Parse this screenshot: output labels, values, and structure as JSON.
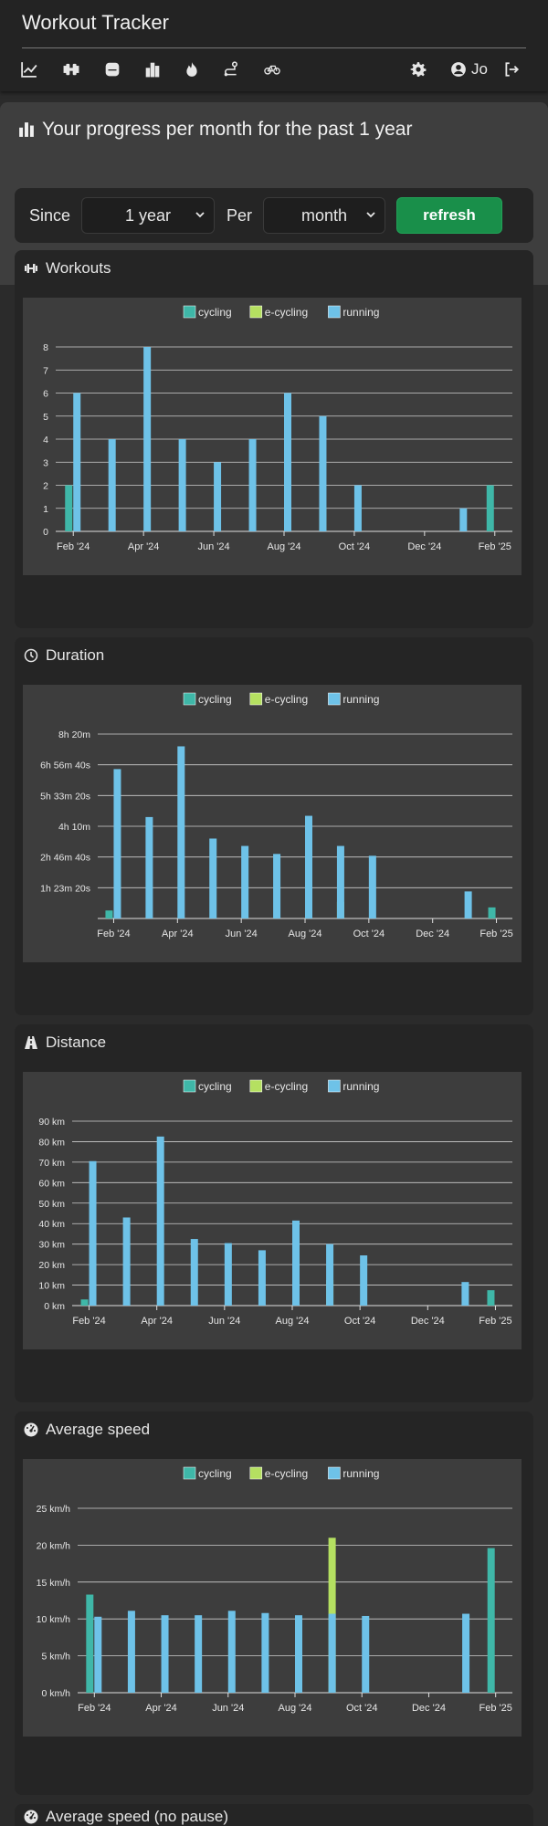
{
  "app": {
    "title": "Workout Tracker",
    "user": "Jo"
  },
  "nav": {
    "icons": [
      "chart-line-icon",
      "dumbbell-icon",
      "database-icon",
      "bar-chart-icon",
      "flame-icon",
      "route-icon",
      "bicycle-icon"
    ],
    "right_icons": [
      "gear-icon",
      "user-circle-icon",
      "logout-icon"
    ]
  },
  "page": {
    "title": "Your progress per month for the past 1 year"
  },
  "filters": {
    "since_label": "Since",
    "since_value": "1 year",
    "per_label": "Per",
    "per_value": "month",
    "refresh_label": "refresh"
  },
  "colors": {
    "cycling": "#3fb7a8",
    "e-cycling": "#b5e061",
    "running": "#6ec2e8"
  },
  "cards": [
    {
      "title": "Workouts",
      "icon": "dumbbell-icon"
    },
    {
      "title": "Duration",
      "icon": "clock-icon"
    },
    {
      "title": "Distance",
      "icon": "road-icon"
    },
    {
      "title": "Average speed",
      "icon": "gauge-icon"
    },
    {
      "title": "Average speed (no pause)",
      "icon": "gauge-icon"
    }
  ],
  "chart_data": [
    {
      "type": "bar",
      "legend": [
        "cycling",
        "e-cycling",
        "running"
      ],
      "xticks": [
        "Feb '24",
        "Apr '24",
        "Jun '24",
        "Aug '24",
        "Oct '24",
        "Dec '24",
        "Feb '25"
      ],
      "yticks": [
        "0",
        "1",
        "2",
        "3",
        "4",
        "5",
        "6",
        "7",
        "8"
      ],
      "ylim": [
        0,
        8
      ],
      "series": [
        {
          "name": "cycling",
          "x": [
            "2024-02",
            "2025-02"
          ],
          "values": [
            2,
            2
          ]
        },
        {
          "name": "e-cycling",
          "x": [
            "2024-09"
          ],
          "values": [
            1
          ]
        },
        {
          "name": "running",
          "x": [
            "2024-02",
            "2024-03",
            "2024-04",
            "2024-05",
            "2024-06",
            "2024-07",
            "2024-08",
            "2024-09",
            "2024-10",
            "2025-01"
          ],
          "values": [
            6,
            4,
            8,
            4,
            3,
            4,
            6,
            5,
            2,
            1
          ]
        }
      ]
    },
    {
      "type": "bar",
      "legend": [
        "cycling",
        "e-cycling",
        "running"
      ],
      "xticks": [
        "Feb '24",
        "Apr '24",
        "Jun '24",
        "Aug '24",
        "Oct '24",
        "Dec '24",
        "Feb '25"
      ],
      "yticks": [
        "1h 23m 20s",
        "2h 46m 40s",
        "4h 10m",
        "5h 33m 20s",
        "6h 56m 40s",
        "8h 20m"
      ],
      "ylim": [
        0,
        30000
      ],
      "series": [
        {
          "name": "cycling",
          "x": [
            "2024-02",
            "2025-02"
          ],
          "values": [
            1300,
            1800
          ]
        },
        {
          "name": "e-cycling",
          "x": [
            "2024-09"
          ],
          "values": [
            2700
          ]
        },
        {
          "name": "running",
          "x": [
            "2024-02",
            "2024-03",
            "2024-04",
            "2024-05",
            "2024-06",
            "2024-07",
            "2024-08",
            "2024-09",
            "2024-10",
            "2025-01"
          ],
          "values": [
            24300,
            16500,
            28000,
            13000,
            11800,
            10500,
            16700,
            11800,
            10200,
            4400
          ]
        }
      ]
    },
    {
      "type": "bar",
      "legend": [
        "cycling",
        "e-cycling",
        "running"
      ],
      "xticks": [
        "Feb '24",
        "Apr '24",
        "Jun '24",
        "Aug '24",
        "Oct '24",
        "Dec '24",
        "Feb '25"
      ],
      "yticks": [
        "0 km",
        "10 km",
        "20 km",
        "30 km",
        "40 km",
        "50 km",
        "60 km",
        "70 km",
        "80 km",
        "90 km"
      ],
      "ylim": [
        0,
        90
      ],
      "series": [
        {
          "name": "cycling",
          "x": [
            "2024-02",
            "2025-02"
          ],
          "values": [
            3,
            7.5
          ]
        },
        {
          "name": "e-cycling",
          "x": [
            "2024-09"
          ],
          "values": [
            12.5
          ]
        },
        {
          "name": "running",
          "x": [
            "2024-02",
            "2024-03",
            "2024-04",
            "2024-05",
            "2024-06",
            "2024-07",
            "2024-08",
            "2024-09",
            "2024-10",
            "2025-01"
          ],
          "values": [
            70.5,
            43,
            82.5,
            32.5,
            30.5,
            27,
            41.5,
            30,
            24.5,
            11.5
          ]
        }
      ]
    },
    {
      "type": "bar",
      "legend": [
        "cycling",
        "e-cycling",
        "running"
      ],
      "xticks": [
        "Feb '24",
        "Apr '24",
        "Jun '24",
        "Aug '24",
        "Oct '24",
        "Dec '24",
        "Feb '25"
      ],
      "yticks": [
        "0 km/h",
        "5 km/h",
        "10 km/h",
        "15 km/h",
        "20 km/h",
        "25 km/h"
      ],
      "ylim": [
        0,
        25
      ],
      "series": [
        {
          "name": "cycling",
          "x": [
            "2024-02",
            "2025-02"
          ],
          "values": [
            13.3,
            19.6
          ]
        },
        {
          "name": "e-cycling",
          "x": [
            "2024-09"
          ],
          "values": [
            21.0
          ]
        },
        {
          "name": "running",
          "x": [
            "2024-02",
            "2024-03",
            "2024-04",
            "2024-05",
            "2024-06",
            "2024-07",
            "2024-08",
            "2024-09",
            "2024-10",
            "2025-01"
          ],
          "values": [
            10.3,
            11.1,
            10.5,
            10.5,
            11.1,
            10.8,
            10.5,
            10.7,
            10.4,
            10.7
          ]
        }
      ]
    }
  ]
}
